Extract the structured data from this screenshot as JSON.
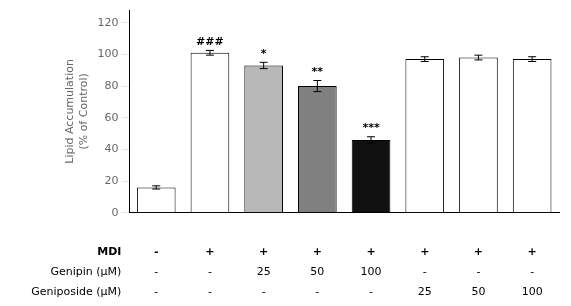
{
  "chart_data": {
    "type": "bar",
    "ylabel": "Lipid Accumulation\n(% of Control)",
    "categories": [
      null,
      null,
      null,
      null,
      null,
      null,
      null,
      null
    ],
    "values": [
      16,
      101,
      93,
      80,
      46,
      97,
      98,
      97
    ],
    "errors": [
      1.0,
      1.5,
      2.0,
      3.5,
      2.0,
      1.5,
      1.5,
      1.5
    ],
    "colors": [
      "white",
      "white",
      "#b8b8b8",
      "#808080",
      "#111111",
      "white",
      "white",
      "white"
    ],
    "ylim": [
      0,
      128
    ],
    "yticks": [
      0,
      20,
      40,
      60,
      80,
      100,
      120
    ],
    "grid": false,
    "annotations": [
      {
        "index": 1,
        "text": "###"
      },
      {
        "index": 2,
        "text": "*"
      },
      {
        "index": 3,
        "text": "**"
      },
      {
        "index": 4,
        "text": "***"
      }
    ],
    "table": {
      "rows": [
        "MDI",
        "Genipin (μM)",
        "Geniposide (μM)"
      ],
      "cells": [
        [
          "-",
          "+",
          "+",
          "+",
          "+",
          "+",
          "+",
          "+"
        ],
        [
          "-",
          "-",
          "25",
          "50",
          "100",
          "-",
          "-",
          "-"
        ],
        [
          "-",
          "-",
          "-",
          "-",
          "-",
          "25",
          "50",
          "100"
        ]
      ]
    }
  }
}
